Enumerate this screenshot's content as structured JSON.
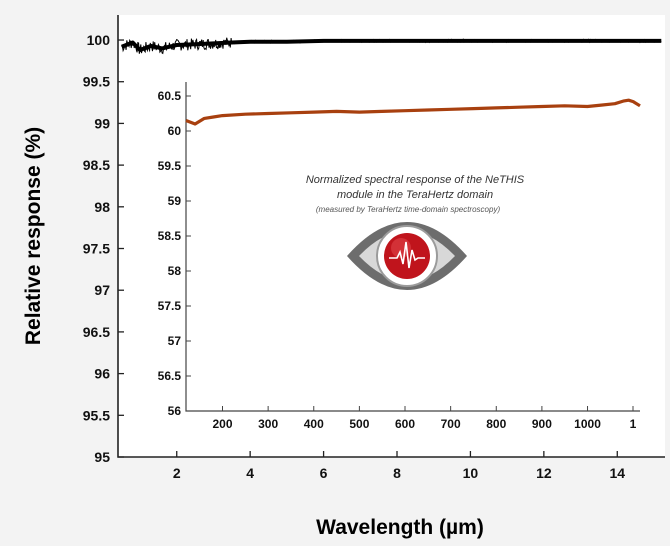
{
  "chart_data": [
    {
      "type": "line",
      "xlabel": "Wavelength (µm)",
      "ylabel": "Relative response (%)",
      "xlim": [
        0.4,
        15.3
      ],
      "ylim": [
        95,
        100.3
      ],
      "xticks": [
        "2",
        "4",
        "6",
        "8",
        "10",
        "12",
        "14"
      ],
      "yticks": [
        "100",
        "99.5",
        "99",
        "98.5",
        "98",
        "97.5",
        "97",
        "96.5",
        "96",
        "95.5",
        "95"
      ],
      "grid": false,
      "series": [
        {
          "color": "#000000",
          "x": [
            0.5,
            0.8,
            1.0,
            1.3,
            1.6,
            2.0,
            2.5,
            3.0,
            3.5,
            4.0,
            5.0,
            6.0,
            7.0,
            8.0,
            9.0,
            10.0,
            11.0,
            12.0,
            13.0,
            14.0,
            15.2
          ],
          "y": [
            99.92,
            99.97,
            99.88,
            99.93,
            99.9,
            99.94,
            99.95,
            99.96,
            99.97,
            99.98,
            99.98,
            99.99,
            99.99,
            99.99,
            99.99,
            99.99,
            99.99,
            99.99,
            99.99,
            99.99,
            99.99
          ]
        }
      ]
    },
    {
      "type": "line",
      "xlim": [
        120,
        1115
      ],
      "ylim": [
        56,
        60.7
      ],
      "xticks": [
        "200",
        "300",
        "400",
        "500",
        "600",
        "700",
        "800",
        "900",
        "1000",
        "1"
      ],
      "yticks": [
        "60.5",
        "60",
        "59.5",
        "59",
        "58.5",
        "58",
        "57.5",
        "57",
        "56.5",
        "56"
      ],
      "grid": false,
      "series": [
        {
          "color": "#a8400f",
          "x": [
            120,
            140,
            160,
            180,
            200,
            250,
            300,
            350,
            400,
            450,
            500,
            550,
            600,
            650,
            700,
            750,
            800,
            850,
            900,
            950,
            1000,
            1030,
            1060,
            1080,
            1090,
            1100,
            1115
          ],
          "y": [
            60.15,
            60.1,
            60.18,
            60.2,
            60.22,
            60.24,
            60.25,
            60.26,
            60.27,
            60.28,
            60.27,
            60.28,
            60.29,
            60.3,
            60.31,
            60.32,
            60.33,
            60.34,
            60.35,
            60.36,
            60.35,
            60.37,
            60.39,
            60.43,
            60.44,
            60.42,
            60.36
          ]
        }
      ]
    }
  ],
  "caption": {
    "line1": "Normalized spectral response of  the NeTHIS",
    "line2": "module in the TeraHertz domain",
    "line3": "(measured by TeraHertz time-domain spectroscopy)"
  },
  "colors": {
    "background": "#f3f3f3",
    "main_line": "#000000",
    "inset_line": "#a8400f",
    "logo_red": "#c0141c",
    "logo_grey": "#6d6d6d"
  }
}
